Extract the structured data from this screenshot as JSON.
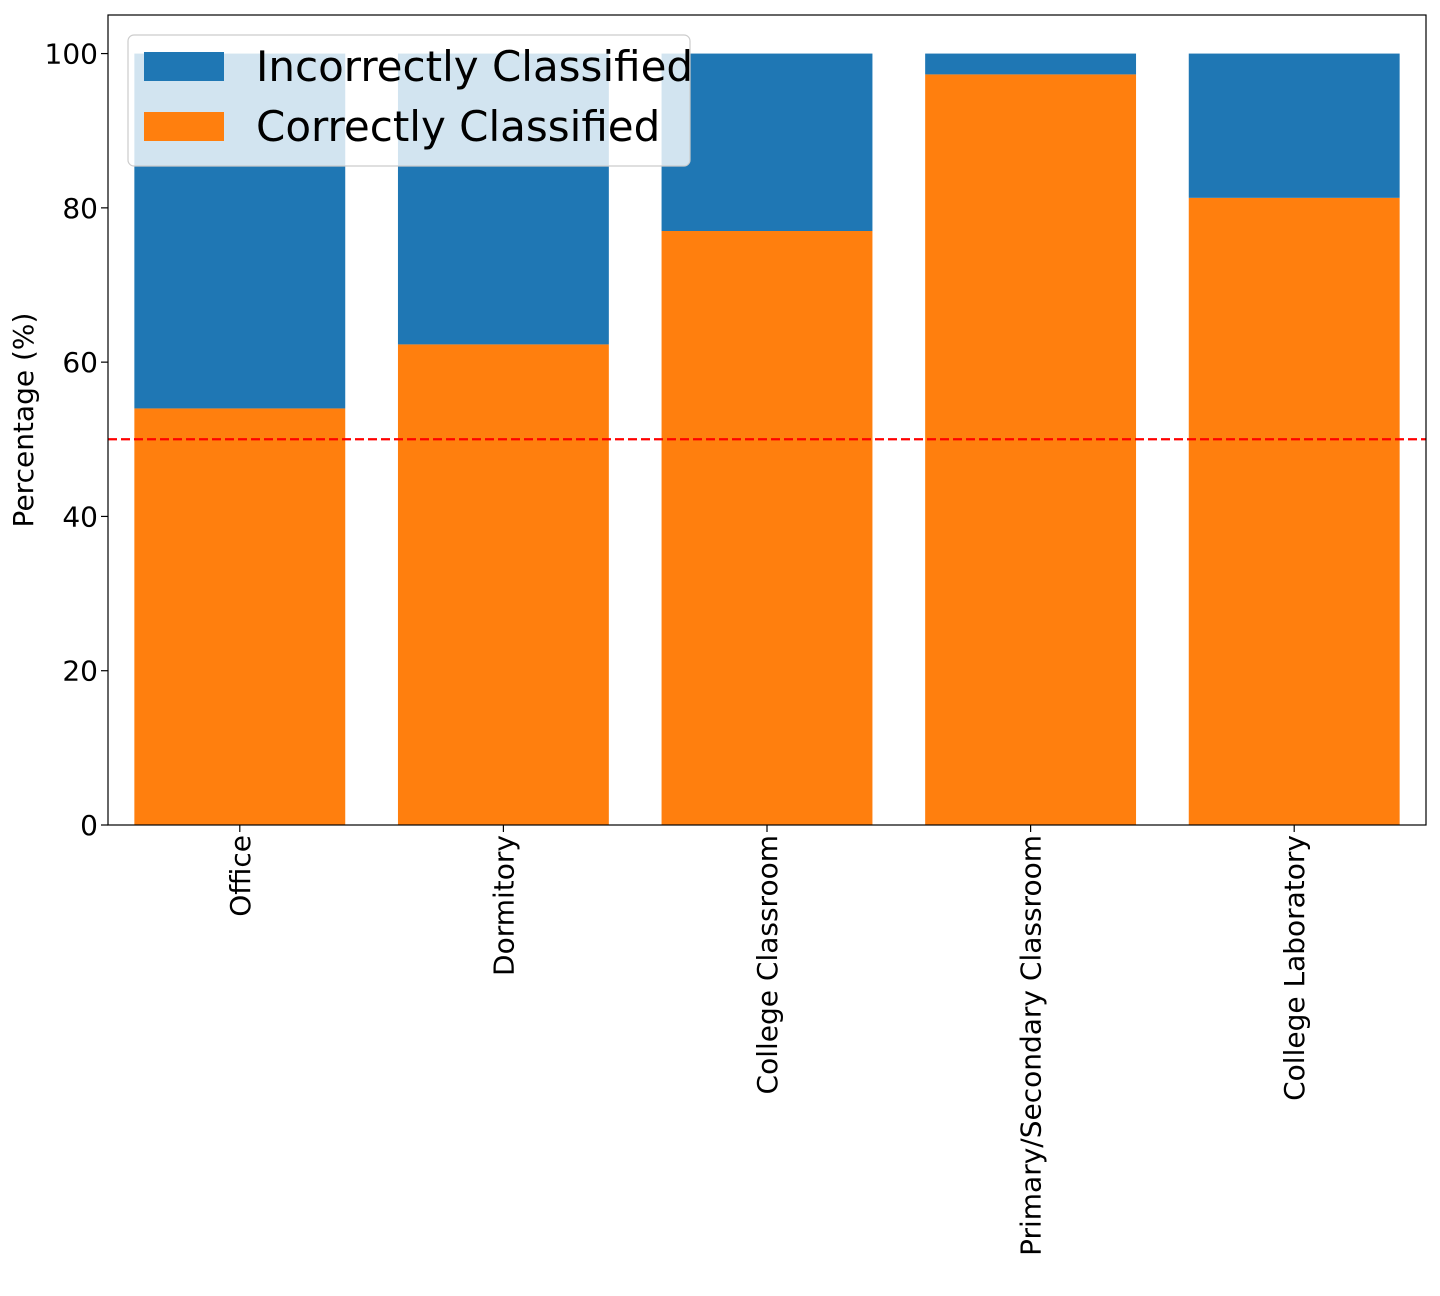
{
  "chart_data": {
    "type": "bar",
    "stacked": true,
    "categories": [
      "Office",
      "Dormitory",
      "College Classroom",
      "Primary/Secondary Classroom",
      "College Laboratory"
    ],
    "series": [
      {
        "name": "Correctly Classified",
        "color": "#ff7f0e",
        "values": [
          54,
          62.3,
          77,
          97.3,
          81.3
        ]
      },
      {
        "name": "Incorrectly Classified",
        "color": "#1f77b4",
        "values": [
          46,
          37.7,
          23,
          2.7,
          18.7
        ]
      }
    ],
    "title": "",
    "xlabel": "",
    "ylabel": "Percentage (%)",
    "ylim": [
      0,
      105
    ],
    "yticks": [
      0,
      20,
      40,
      60,
      80,
      100
    ],
    "reference_line": {
      "y": 50,
      "color": "#ff0000",
      "style": "dashed"
    },
    "legend": {
      "placement": "top-left",
      "entries": [
        "Incorrectly Classified",
        "Correctly Classified"
      ]
    },
    "grid": false
  }
}
